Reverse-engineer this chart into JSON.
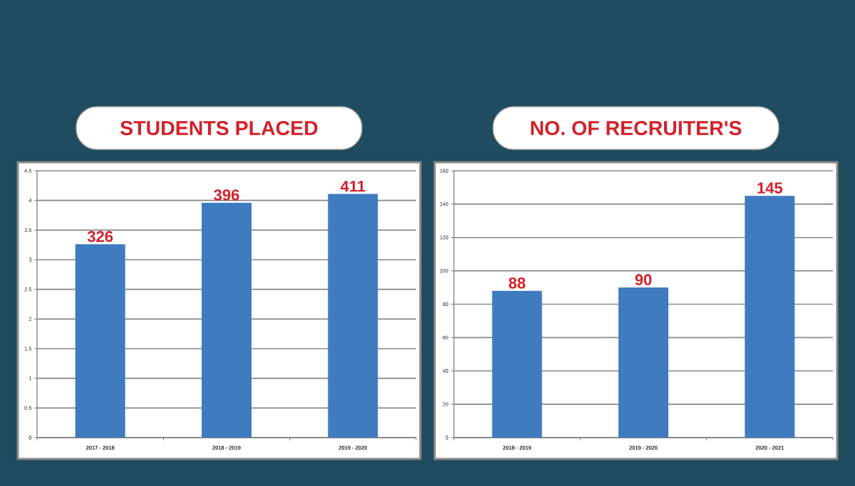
{
  "chart_data": [
    {
      "type": "bar",
      "title": "STUDENTS PLACED",
      "categories": [
        "2017 - 2018",
        "2018 - 2019",
        "2019 - 2020"
      ],
      "values": [
        3.26,
        3.96,
        4.11
      ],
      "color": "#3f7bbf",
      "ylim": [
        0,
        4.5
      ],
      "yticks": [
        0,
        0.5,
        1,
        1.5,
        2,
        2.5,
        3,
        3.5,
        4,
        4.5
      ],
      "grid": "y",
      "annotations": [
        {
          "text": "326",
          "x": "2017 - 2018",
          "y": 3.26
        },
        {
          "text": "396",
          "x": "2018 - 2019",
          "y": 3.96
        },
        {
          "text": "411",
          "x": "2019 - 2020",
          "y": 4.11
        }
      ]
    },
    {
      "type": "bar",
      "title": "NO. OF RECRUITER'S",
      "categories": [
        "2018 - 2019",
        "2019 - 2020",
        "2020 - 2021"
      ],
      "values": [
        88,
        90,
        145
      ],
      "data_labels": true,
      "color": "#3f7bbf",
      "ylim": [
        0,
        160
      ],
      "yticks": [
        0,
        20,
        40,
        60,
        80,
        100,
        120,
        140,
        160
      ],
      "grid": "y"
    }
  ]
}
